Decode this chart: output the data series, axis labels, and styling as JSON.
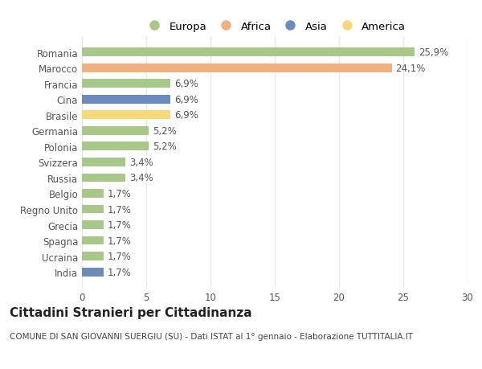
{
  "categories": [
    "Romania",
    "Marocco",
    "Francia",
    "Cina",
    "Brasile",
    "Germania",
    "Polonia",
    "Svizzera",
    "Russia",
    "Belgio",
    "Regno Unito",
    "Grecia",
    "Spagna",
    "Ucraina",
    "India"
  ],
  "values": [
    25.9,
    24.1,
    6.9,
    6.9,
    6.9,
    5.2,
    5.2,
    3.4,
    3.4,
    1.7,
    1.7,
    1.7,
    1.7,
    1.7,
    1.7
  ],
  "labels": [
    "25,9%",
    "24,1%",
    "6,9%",
    "6,9%",
    "6,9%",
    "5,2%",
    "5,2%",
    "3,4%",
    "3,4%",
    "1,7%",
    "1,7%",
    "1,7%",
    "1,7%",
    "1,7%",
    "1,7%"
  ],
  "bar_colors": {
    "Romania": "#a8c88a",
    "Marocco": "#f0b080",
    "Francia": "#a8c88a",
    "Cina": "#6b8cba",
    "Brasile": "#f5d97a",
    "Germania": "#a8c88a",
    "Polonia": "#a8c88a",
    "Svizzera": "#a8c88a",
    "Russia": "#a8c88a",
    "Belgio": "#a8c88a",
    "Regno Unito": "#a8c88a",
    "Grecia": "#a8c88a",
    "Spagna": "#a8c88a",
    "Ucraina": "#a8c88a",
    "India": "#6b8cba"
  },
  "legend": [
    {
      "label": "Europa",
      "color": "#a8c88a"
    },
    {
      "label": "Africa",
      "color": "#f0b080"
    },
    {
      "label": "Asia",
      "color": "#6b8cba"
    },
    {
      "label": "America",
      "color": "#f5d97a"
    }
  ],
  "xlim": [
    0,
    30
  ],
  "xticks": [
    0,
    5,
    10,
    15,
    20,
    25,
    30
  ],
  "title": "Cittadini Stranieri per Cittadinanza",
  "subtitle": "COMUNE DI SAN GIOVANNI SUERGIU (SU) - Dati ISTAT al 1° gennaio - Elaborazione TUTTITALIA.IT",
  "bg_color": "#ffffff",
  "plot_bg_color": "#ffffff",
  "grid_color": "#e8e8e8",
  "bar_height": 0.55,
  "label_fontsize": 8.5,
  "tick_fontsize": 8.5,
  "title_fontsize": 11,
  "subtitle_fontsize": 7.5
}
